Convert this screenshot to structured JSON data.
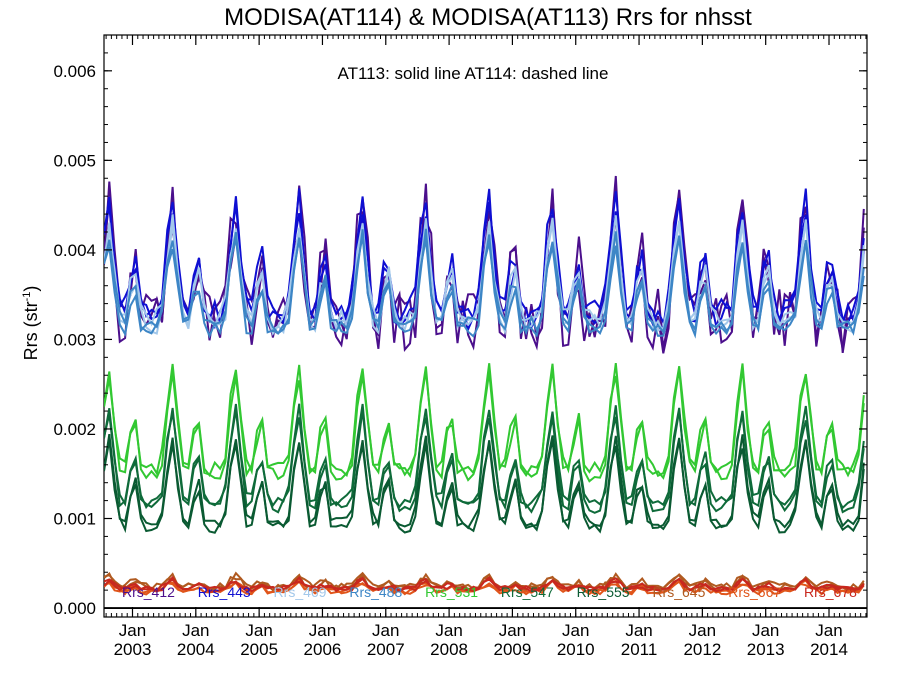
{
  "chart_data": {
    "type": "line",
    "title": "MODISA(AT114) & MODISA(AT113)  Rrs for nhsst",
    "annotation": "AT113: solid line   AT114: dashed line",
    "ylabel": "Rrs (str",
    "ylabel_sup": "-1",
    "ylabel_end": ")",
    "xlabel": "",
    "ylim": [
      -0.0001,
      0.0064
    ],
    "xlim": [
      2002.55,
      2014.6
    ],
    "grid": false,
    "legend_position": "bottom",
    "y_ticks": [
      {
        "value": 0.0,
        "label": "0.000"
      },
      {
        "value": 0.001,
        "label": "0.001"
      },
      {
        "value": 0.002,
        "label": "0.002"
      },
      {
        "value": 0.003,
        "label": "0.003"
      },
      {
        "value": 0.004,
        "label": "0.004"
      },
      {
        "value": 0.005,
        "label": "0.005"
      },
      {
        "value": 0.006,
        "label": "0.006"
      }
    ],
    "x_ticks": [
      {
        "value": 2003.0,
        "month": "Jan",
        "year": "2003"
      },
      {
        "value": 2004.0,
        "month": "Jan",
        "year": "2004"
      },
      {
        "value": 2005.0,
        "month": "Jan",
        "year": "2005"
      },
      {
        "value": 2006.0,
        "month": "Jan",
        "year": "2006"
      },
      {
        "value": 2007.0,
        "month": "Jan",
        "year": "2007"
      },
      {
        "value": 2008.0,
        "month": "Jan",
        "year": "2008"
      },
      {
        "value": 2009.0,
        "month": "Jan",
        "year": "2009"
      },
      {
        "value": 2010.0,
        "month": "Jan",
        "year": "2010"
      },
      {
        "value": 2011.0,
        "month": "Jan",
        "year": "2011"
      },
      {
        "value": 2012.0,
        "month": "Jan",
        "year": "2012"
      },
      {
        "value": 2013.0,
        "month": "Jan",
        "year": "2013"
      },
      {
        "value": 2014.0,
        "month": "Jan",
        "year": "2014"
      }
    ],
    "series": [
      {
        "name": "Rrs_412",
        "color": "#4b0f8c",
        "amp": 0.00135,
        "base": 0.0037,
        "noise": 0.00035
      },
      {
        "name": "Rrs_443",
        "color": "#0f0fd2",
        "amp": 0.00125,
        "base": 0.00375,
        "noise": 0.00015
      },
      {
        "name": "Rrs_469",
        "color": "#a3c8ea",
        "amp": 0.0011,
        "base": 0.0036,
        "noise": 0.00012
      },
      {
        "name": "Rrs_488",
        "color": "#3d86c6",
        "amp": 0.001,
        "base": 0.0035,
        "noise": 0.0001
      },
      {
        "name": "Rrs_531",
        "color": "#32c832",
        "amp": 0.00115,
        "base": 0.00195,
        "noise": 8e-05
      },
      {
        "name": "Rrs_547",
        "color": "#0f6b3a",
        "amp": 0.00105,
        "base": 0.00155,
        "noise": 7e-05
      },
      {
        "name": "Rrs_555",
        "color": "#0a5a32",
        "amp": 0.00095,
        "base": 0.00128,
        "noise": 6e-05
      },
      {
        "name": "Rrs_645",
        "color": "#b05a20",
        "amp": 0.00012,
        "base": 0.00028,
        "noise": 4e-05
      },
      {
        "name": "Rrs_667",
        "color": "#e0551a",
        "amp": 0.0001,
        "base": 0.00022,
        "noise": 3e-05
      },
      {
        "name": "Rrs_678",
        "color": "#c8281e",
        "amp": 0.0001,
        "base": 0.00025,
        "noise": 3e-05
      }
    ]
  }
}
